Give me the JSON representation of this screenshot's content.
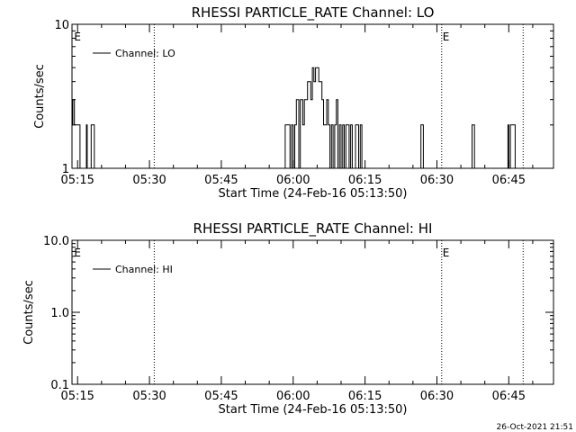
{
  "footer": {
    "timestamp": "26-Oct-2021 21:51"
  },
  "colors": {
    "background": "#ffffff",
    "foreground": "#000000"
  },
  "chart_data": [
    {
      "type": "line",
      "title": "RHESSI PARTICLE_RATE Channel: LO",
      "xlabel": "Start Time (24-Feb-16 05:13:50)",
      "ylabel": "Counts/sec",
      "x_unit": "time",
      "xlim": [
        "05:13:50",
        "06:54:20"
      ],
      "x_ticks": [
        "05:15",
        "05:30",
        "05:45",
        "06:00",
        "06:15",
        "06:30",
        "06:45"
      ],
      "ylim": [
        1,
        10
      ],
      "y_scale": "log",
      "y_ticks": [
        {
          "value": 1,
          "label": "1"
        },
        {
          "value": 10,
          "label": "10"
        }
      ],
      "legend": {
        "entries": [
          "Channel: LO"
        ],
        "placement": "top-left"
      },
      "markers": [
        {
          "time": "05:14:05",
          "label": "E",
          "line": false
        },
        {
          "time": "05:31:00",
          "label": "",
          "line": true
        },
        {
          "time": "06:31:00",
          "label": "E",
          "line": true
        },
        {
          "time": "06:48:00",
          "label": "",
          "line": true
        }
      ],
      "series": [
        {
          "name": "Channel: LO",
          "x": [
            "05:13:50",
            "05:14:00",
            "05:14:20",
            "05:14:40",
            "05:15:30",
            "05:16:40",
            "05:16:50",
            "05:17:00",
            "05:17:40",
            "05:17:50",
            "05:18:10",
            "05:18:30",
            "05:18:40",
            "05:58:10",
            "05:58:20",
            "05:58:50",
            "05:59:20",
            "05:59:40",
            "06:00:00",
            "06:00:20",
            "06:00:40",
            "06:01:10",
            "06:01:30",
            "06:02:00",
            "06:02:20",
            "06:02:40",
            "06:03:00",
            "06:03:20",
            "06:03:40",
            "06:04:00",
            "06:04:20",
            "06:04:40",
            "06:05:00",
            "06:05:20",
            "06:05:40",
            "06:06:00",
            "06:06:20",
            "06:06:40",
            "06:07:00",
            "06:07:20",
            "06:07:40",
            "06:08:00",
            "06:08:20",
            "06:08:40",
            "06:09:00",
            "06:09:20",
            "06:09:40",
            "06:10:00",
            "06:10:20",
            "06:10:40",
            "06:11:00",
            "06:11:20",
            "06:11:40",
            "06:12:00",
            "06:12:20",
            "06:12:40",
            "06:13:00",
            "06:13:20",
            "06:13:40",
            "06:14:00",
            "06:14:20",
            "06:26:20",
            "06:26:40",
            "06:26:50",
            "06:27:10",
            "06:37:00",
            "06:37:20",
            "06:37:30",
            "06:37:50",
            "06:44:30",
            "06:44:50",
            "06:45:00",
            "06:45:20",
            "06:45:40",
            "06:46:00",
            "06:46:20"
          ],
          "y": [
            2,
            3,
            2,
            2,
            1,
            1,
            2,
            1,
            1,
            2,
            2,
            1,
            1,
            1,
            2,
            2,
            1,
            2,
            1,
            2,
            3,
            1,
            3,
            2,
            3,
            3,
            4,
            4,
            3,
            5,
            4,
            5,
            5,
            4,
            4,
            3,
            2,
            2,
            3,
            2,
            1,
            2,
            1,
            2,
            3,
            1,
            2,
            1,
            2,
            1,
            2,
            2,
            1,
            2,
            1,
            1,
            2,
            2,
            1,
            2,
            1,
            1,
            2,
            2,
            1,
            1,
            2,
            2,
            1,
            1,
            2,
            1,
            2,
            2,
            2,
            1
          ]
        }
      ]
    },
    {
      "type": "line",
      "title": "RHESSI PARTICLE_RATE Channel: HI",
      "xlabel": "Start Time (24-Feb-16 05:13:50)",
      "ylabel": "Counts/sec",
      "x_unit": "time",
      "xlim": [
        "05:13:50",
        "06:54:20"
      ],
      "x_ticks": [
        "05:15",
        "05:30",
        "05:45",
        "06:00",
        "06:15",
        "06:30",
        "06:45"
      ],
      "ylim": [
        0.1,
        10
      ],
      "y_scale": "log",
      "y_ticks": [
        {
          "value": 0.1,
          "label": "0.1"
        },
        {
          "value": 1,
          "label": "1.0"
        },
        {
          "value": 10,
          "label": "10.0"
        }
      ],
      "legend": {
        "entries": [
          "Channel: HI"
        ],
        "placement": "top-left"
      },
      "markers": [
        {
          "time": "05:14:05",
          "label": "E",
          "line": false
        },
        {
          "time": "05:31:00",
          "label": "",
          "line": true
        },
        {
          "time": "06:31:00",
          "label": "E",
          "line": true
        },
        {
          "time": "06:48:00",
          "label": "",
          "line": true
        }
      ],
      "series": [
        {
          "name": "Channel: HI",
          "x": [],
          "y": []
        }
      ]
    }
  ]
}
